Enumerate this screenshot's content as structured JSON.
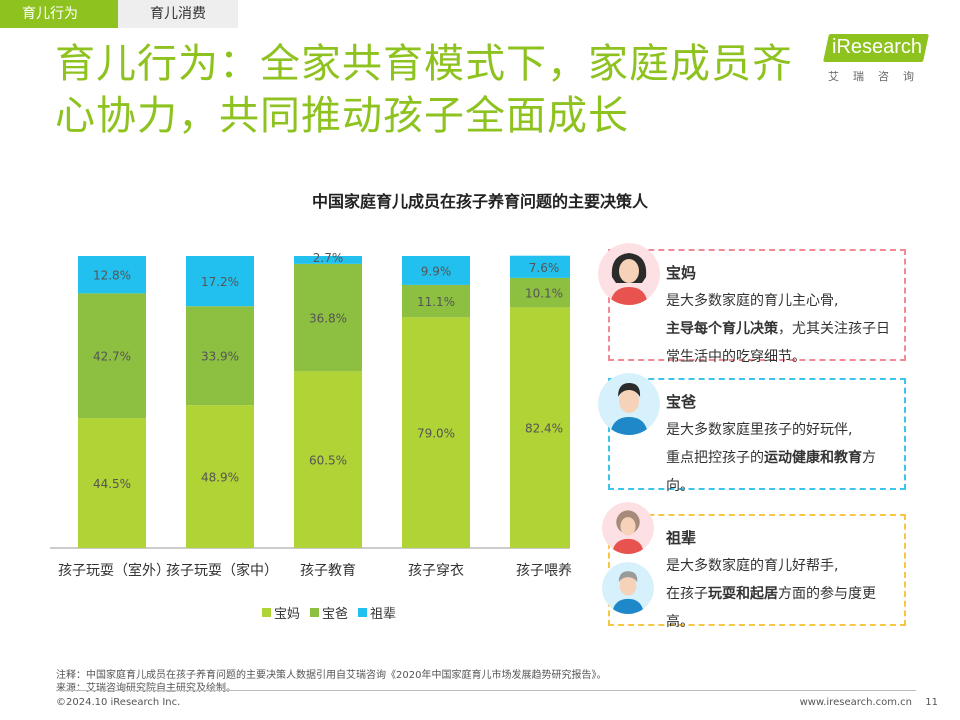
{
  "tabs": [
    {
      "label": "育儿行为"
    },
    {
      "label": "育儿消费"
    }
  ],
  "title_line1": "育儿行为：全家共育模式下，家庭成员齐",
  "title_line2": "心协力，共同推动孩子全面成长",
  "logo": {
    "text": "iResearch",
    "sub": "艾瑞咨询"
  },
  "colors": {
    "mom": "#b0d335",
    "dad": "#8dc040",
    "grand": "#22c0ee",
    "brand": "#8dc21f"
  },
  "chart_data": {
    "type": "bar",
    "stacked": true,
    "title": "中国家庭育儿成员在孩子养育问题的主要决策人",
    "categories": [
      "孩子玩耍（室外）",
      "孩子玩耍（家中）",
      "孩子教育",
      "孩子穿衣",
      "孩子喂养"
    ],
    "series": [
      {
        "name": "宝妈",
        "values": [
          44.5,
          48.9,
          60.5,
          79.0,
          82.4
        ],
        "labels": [
          "44.5%",
          "48.9%",
          "60.5%",
          "79.0%",
          "82.4%"
        ]
      },
      {
        "name": "宝爸",
        "values": [
          42.7,
          33.9,
          36.8,
          11.1,
          10.1
        ],
        "labels": [
          "42.7%",
          "33.9%",
          "36.8%",
          "11.1%",
          "10.1%"
        ]
      },
      {
        "name": "祖辈",
        "values": [
          12.8,
          17.2,
          2.7,
          9.9,
          7.6
        ],
        "labels": [
          "12.8%",
          "17.2%",
          "2.7%",
          "9.9%",
          "7.6%"
        ]
      }
    ],
    "ylim": [
      0,
      100
    ],
    "grid": false,
    "legend": "bottom"
  },
  "cards": {
    "mom": {
      "name": "宝妈",
      "line1": "是大多数家庭的育儿主心骨,",
      "bold": "主导每个育儿决策",
      "rest": "，尤其关注孩子日常生活中的吃穿细节。"
    },
    "dad": {
      "name": "宝爸",
      "line1": "是大多数家庭里孩子的好玩伴,",
      "pre": "重点把控孩子的",
      "bold": "运动健康和教育",
      "post": "方向。"
    },
    "grand": {
      "name": "祖辈",
      "line1": "是大多数家庭的育儿好帮手,",
      "pre": "在孩子",
      "bold": "玩耍和起居",
      "post": "方面的参与度更高。"
    }
  },
  "footer": {
    "note": "注释：中国家庭育儿成员在孩子养育问题的主要决策人数据引用自艾瑞咨询《2020年中国家庭育儿市场发展趋势研究报告》。",
    "source": "来源：艾瑞咨询研究院自主研究及绘制。",
    "copyright": "©2024.10 iResearch Inc.",
    "site": "www.iresearch.com.cn",
    "page": "11"
  }
}
